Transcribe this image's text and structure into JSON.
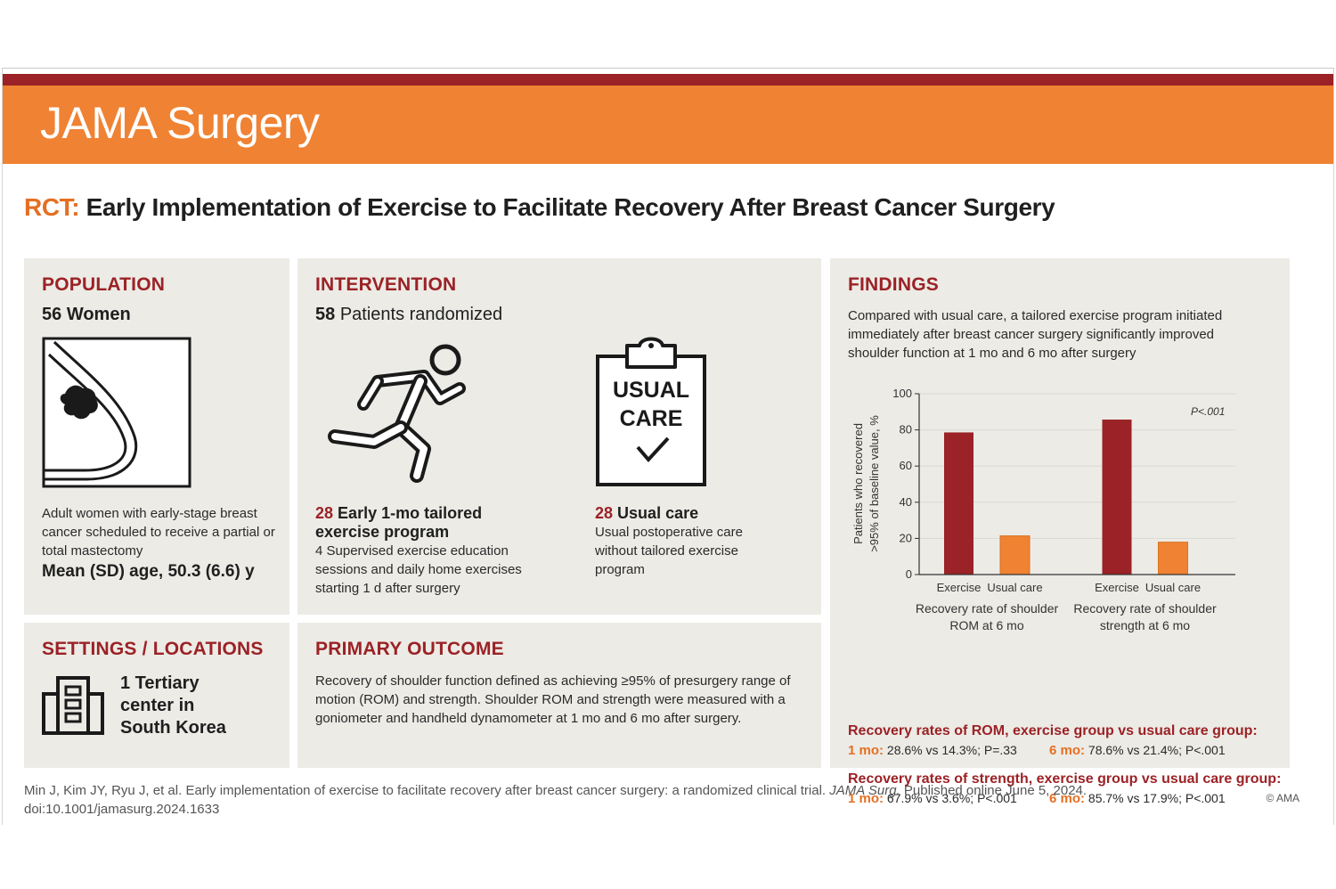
{
  "header": {
    "journal": "JAMA Surgery"
  },
  "title": {
    "tag": "RCT:",
    "text": "Early Implementation of Exercise to Facilitate Recovery After Breast Cancer Surgery"
  },
  "population": {
    "heading": "POPULATION",
    "count": "56",
    "count_label": "Women",
    "description": "Adult women with early-stage breast cancer scheduled to receive a partial or total mastectomy",
    "age": "Mean (SD) age, 50.3 (6.6) y"
  },
  "intervention": {
    "heading": "INTERVENTION",
    "count": "58",
    "count_label": "Patients randomized",
    "exercise_arm": {
      "count": "28",
      "title": "Early 1-mo tailored exercise program",
      "description": "4 Supervised exercise education sessions and daily home exercises starting 1 d after surgery"
    },
    "usual_care_arm": {
      "icon_text_1": "USUAL",
      "icon_text_2": "CARE",
      "count": "28",
      "title": "Usual care",
      "description": "Usual postoperative care without tailored exercise program"
    }
  },
  "settings": {
    "heading": "SETTINGS / LOCATIONS",
    "line1": "1 Tertiary",
    "line2": "center in",
    "line3": "South Korea"
  },
  "primary_outcome": {
    "heading": "PRIMARY OUTCOME",
    "text": "Recovery of shoulder function defined as achieving ≥95% of presurgery range of motion (ROM) and strength. Shoulder ROM and strength were measured with a goniometer and handheld dynamometer at 1 mo and 6 mo after surgery."
  },
  "findings": {
    "heading": "FINDINGS",
    "summary": "Compared with usual care, a tailored exercise program initiated immediately after breast cancer surgery significantly improved shoulder function at 1 mo and 6 mo after surgery",
    "rom": {
      "heading": "Recovery rates of ROM, exercise group vs usual care group:",
      "m1_label": "1 mo:",
      "m1_value": "28.6% vs 14.3%; P=.33",
      "m6_label": "6 mo:",
      "m6_value": "78.6% vs 21.4%; P<.001"
    },
    "strength": {
      "heading": "Recovery rates of strength, exercise group vs usual care group:",
      "m1_label": "1 mo:",
      "m1_value": "67.9% vs 3.6%; P<.001",
      "m6_label": "6 mo:",
      "m6_value": "85.7% vs 17.9%; P<.001"
    }
  },
  "chart_data": {
    "type": "bar",
    "ylabel_line1": "Patients who recovered",
    "ylabel_line2": ">95% of baseline value, %",
    "ylim": [
      0,
      100
    ],
    "yticks": [
      0,
      20,
      40,
      60,
      80,
      100
    ],
    "grid": true,
    "annotation": "P<.001",
    "groups": [
      {
        "label_line1": "Recovery rate of shoulder",
        "label_line2": "ROM at 6 mo",
        "bars": [
          {
            "name": "Exercise",
            "value": 78.6
          },
          {
            "name": "Usual care",
            "value": 21.4
          }
        ]
      },
      {
        "label_line1": "Recovery rate of shoulder",
        "label_line2": "strength at 6 mo",
        "bars": [
          {
            "name": "Exercise",
            "value": 85.7
          },
          {
            "name": "Usual care",
            "value": 17.9
          }
        ]
      }
    ],
    "colors": {
      "exercise": "#9b2226",
      "usual_care": "#f08233",
      "grid": "#d9d9d4",
      "axis": "#333333"
    }
  },
  "footer": {
    "citation_part1": "Min J, Kim JY, Ryu J, et al. Early implementation of exercise to facilitate recovery after breast cancer surgery: a randomized clinical trial. ",
    "citation_journal": "JAMA Surg.",
    "citation_part2": " Published online June 5, 2024.",
    "doi": "doi:10.1001/jamasurg.2024.1633",
    "copyright": "© AMA"
  }
}
